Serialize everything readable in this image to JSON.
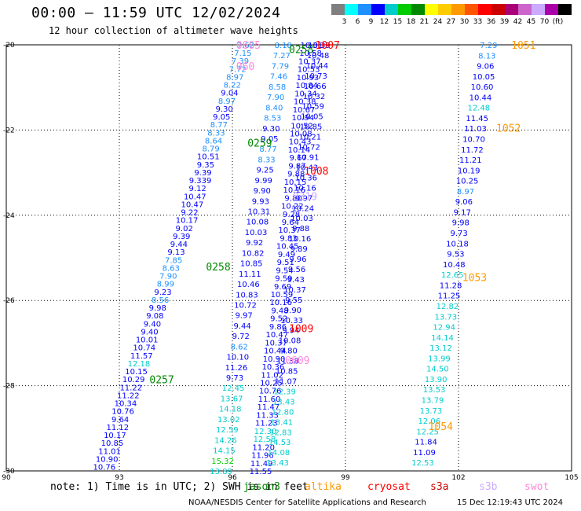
{
  "header": {
    "title": "00:00 – 11:59 UTC 12/02/2024",
    "subtitle": "12 hour collection of altimeter wave heights"
  },
  "color_scale": {
    "colors": [
      "#7f7f7f",
      "#00ffff",
      "#1e90ff",
      "#0000ff",
      "#00cccc",
      "#00cc00",
      "#008800",
      "#ffff00",
      "#ffcc00",
      "#ff9900",
      "#ff5500",
      "#ff0000",
      "#cc0000",
      "#aa0077",
      "#cc66cc",
      "#ccaaff",
      "#aa00aa",
      "#000000"
    ],
    "labels": [
      "3",
      "6",
      "9",
      "12",
      "15",
      "18",
      "21",
      "24",
      "27",
      "30",
      "33",
      "36",
      "39",
      "42",
      "45",
      "70",
      "(ft)"
    ]
  },
  "footer": {
    "note": "note: 1) Time is in UTC; 2) SWH is in feet",
    "credit": "NOAA/NESDIS Center for Satellite Applications and Research",
    "timestamp": "15 Dec 12:19:43 UTC 2024"
  },
  "satellites": [
    {
      "name": "jason3",
      "color": "#008800"
    },
    {
      "name": "altika",
      "color": "#ff9900"
    },
    {
      "name": "cryosat",
      "color": "#ff0000"
    },
    {
      "name": "s3a",
      "color": "#cc0000"
    },
    {
      "name": "s3b",
      "color": "#ccaaff"
    },
    {
      "name": "swot",
      "color": "#ff88dd"
    }
  ],
  "chart_data": {
    "type": "scatter",
    "xlim": [
      90,
      105
    ],
    "ylim": [
      -30,
      -20
    ],
    "x_ticks": [
      "90",
      "93",
      "96",
      "99",
      "102",
      "105"
    ],
    "y_ticks": [
      "-20",
      "-22",
      "-24",
      "-26",
      "-28",
      "-30"
    ],
    "grid": true,
    "pass_labels": [
      {
        "text": "0605",
        "x": 96.1,
        "y": -20.0,
        "color": "#ff88dd"
      },
      {
        "text": "060",
        "x": 96.1,
        "y": -20.5,
        "color": "#ff88dd"
      },
      {
        "text": "0258",
        "x": 97.5,
        "y": -20.1,
        "color": "#008800"
      },
      {
        "text": "1007",
        "x": 98.2,
        "y": -20.0,
        "color": "#ff0000"
      },
      {
        "text": "1051",
        "x": 103.4,
        "y": -20.0,
        "color": "#ff9900"
      },
      {
        "text": "1052",
        "x": 103.0,
        "y": -21.95,
        "color": "#ff9900"
      },
      {
        "text": "0259",
        "x": 96.4,
        "y": -22.3,
        "color": "#008800"
      },
      {
        "text": "1008",
        "x": 97.9,
        "y": -22.95,
        "color": "#ff0000"
      },
      {
        "text": "0319",
        "x": 97.6,
        "y": -23.55,
        "color": "#ccaaff"
      },
      {
        "text": "0258",
        "x": 95.3,
        "y": -25.2,
        "color": "#008800"
      },
      {
        "text": "1053",
        "x": 102.1,
        "y": -25.45,
        "color": "#ff9900"
      },
      {
        "text": "1009",
        "x": 97.5,
        "y": -26.65,
        "color": "#ff0000"
      },
      {
        "text": "0609",
        "x": 97.4,
        "y": -27.4,
        "color": "#ff88dd"
      },
      {
        "text": "0257",
        "x": 93.8,
        "y": -27.85,
        "color": "#008800"
      },
      {
        "text": "1054",
        "x": 101.2,
        "y": -28.95,
        "color": "#ff9900"
      }
    ],
    "series": [
      {
        "x0": 96.35,
        "y0": -20.0,
        "x1": 92.6,
        "y1": -29.9,
        "values": [
          "7.62",
          "7.15",
          "7.39",
          "7.72",
          "8.97",
          "8.22",
          "9.04",
          "8.97",
          "9.30",
          "9.05",
          "8.77",
          "8.33",
          "8.64",
          "8.79",
          "10.51",
          "9.35",
          "9.39",
          "9.339",
          "9.12",
          "10.47",
          "10.47",
          "9.22",
          "10.17",
          "9.02",
          "9.39",
          "9.44",
          "9.13",
          "7.85",
          "8.63",
          "7.90",
          "8.99",
          "9.23",
          "8.56",
          "9.98",
          "9.08",
          "9.40",
          "9.40",
          "10.01",
          "10.74",
          "11.57",
          "12.18",
          "10.15",
          "10.29",
          "11.22",
          "11.22",
          "10.34",
          "10.76",
          "9.64",
          "11.12",
          "10.17",
          "10.85",
          "11.01",
          "10.90",
          "10.76"
        ]
      },
      {
        "x0": 97.35,
        "y0": -20.0,
        "x1": 95.7,
        "y1": -30.0,
        "values": [
          "8.18",
          "7.27",
          "7.79",
          "7.46",
          "8.58",
          "7.90",
          "8.40",
          "8.53",
          "9.30",
          "9.05",
          "8.77",
          "8.33",
          "9.25",
          "9.99",
          "9.90",
          "9.93",
          "10.31",
          "10.08",
          "10.03",
          "9.92",
          "10.82",
          "10.85",
          "11.11",
          "10.46",
          "10.83",
          "10.72",
          "9.97",
          "9.44",
          "9.72",
          "8.62",
          "10.10",
          "11.26",
          "9.73",
          "12.45",
          "13.67",
          "14.18",
          "13.02",
          "12.59",
          "14.26",
          "14.15",
          "15.32",
          "13.89"
        ]
      },
      {
        "x0": 98.1,
        "y0": -20.0,
        "x1": 96.75,
        "y1": -30.0,
        "values": [
          "10.31",
          "10.58",
          "10.37",
          "10.53",
          "10.93",
          "10.84",
          "10.34",
          "10.38",
          "10.67",
          "10.94",
          "10.52",
          "10.08",
          "10.43",
          "10.14",
          "9.67",
          "9.87",
          "9.88",
          "10.15",
          "10.16",
          "9.80",
          "10.22",
          "9.28",
          "9.64",
          "10.37",
          "9.83",
          "10.45",
          "9.49",
          "9.51",
          "9.54",
          "9.59",
          "9.69",
          "10.59",
          "10.16",
          "9.48",
          "9.52",
          "9.86",
          "10.47",
          "10.37",
          "10.44",
          "10.90",
          "10.36",
          "11.02",
          "10.25",
          "10.76",
          "11.60",
          "11.47",
          "11.33",
          "11.23",
          "12.30",
          "12.58",
          "11.20",
          "11.96",
          "11.49",
          "11.55"
        ]
      },
      {
        "x0": 98.3,
        "y0": -20.0,
        "x1": 97.2,
        "y1": -29.8,
        "values": [
          "10.39",
          "10.48",
          "10.44",
          "10.73",
          "10.66",
          "10.32",
          "10.59",
          "10.05",
          "10.85",
          "10.21",
          "10.72",
          "10.91",
          "10.43",
          "10.36",
          "10.16",
          "9.97",
          "10.24",
          "10.03",
          "9.88",
          "10.16",
          "9.89",
          "9.96",
          "9.56",
          "9.43",
          "10.37",
          "9.55",
          "9.90",
          "10.33",
          "9.94",
          "10.08",
          "9.80",
          "11.38",
          "10.85",
          "11.07",
          "12.39",
          "13.43",
          "12.80",
          "13.41",
          "12.83",
          "14.53",
          "14.08",
          "13.43"
        ]
      },
      {
        "x0": 102.8,
        "y0": -20.0,
        "x1": 101.05,
        "y1": -29.8,
        "values": [
          "7.29",
          "8.13",
          "9.06",
          "10.05",
          "10.60",
          "10.44",
          "12.48",
          "11.45",
          "11.03",
          "10.70",
          "11.72",
          "11.21",
          "10.19",
          "10.25",
          "8.97",
          "9.06",
          "9.17",
          "9.98",
          "9.73",
          "10.18",
          "9.53",
          "10.48",
          "12.65",
          "11.28",
          "11.25",
          "12.82",
          "13.73",
          "12.94",
          "14.14",
          "13.12",
          "13.99",
          "14.50",
          "13.90",
          "13.53",
          "13.79",
          "13.73",
          "12.06",
          "12.25",
          "11.84",
          "11.09",
          "12.53"
        ]
      }
    ]
  }
}
